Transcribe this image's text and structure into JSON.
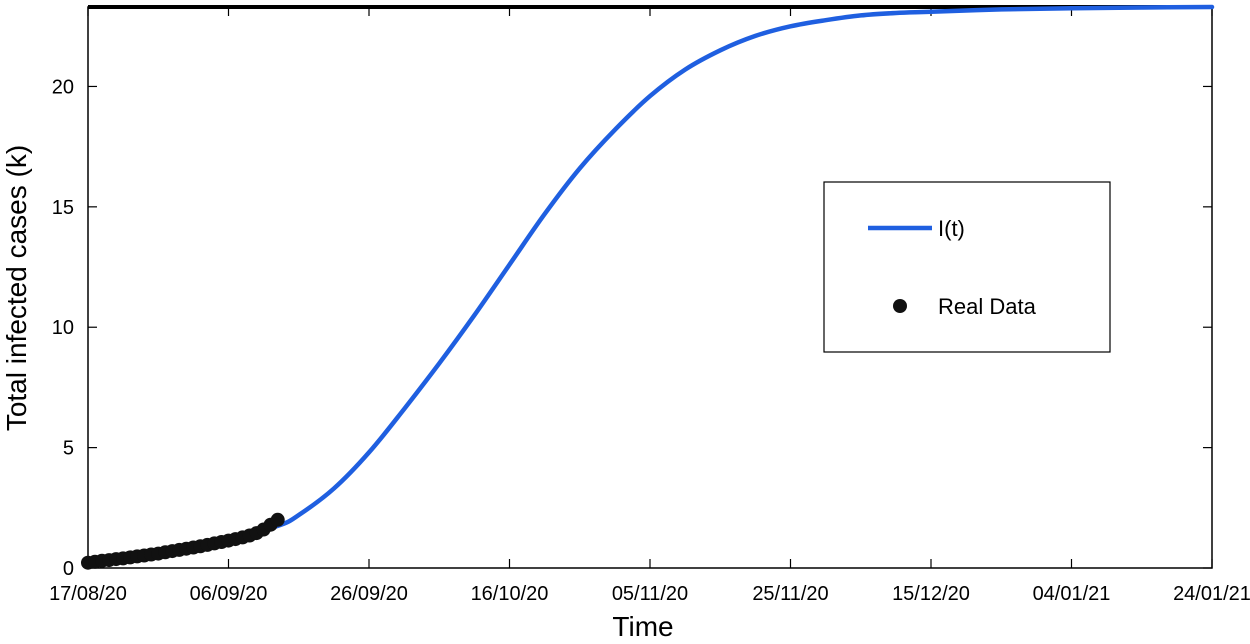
{
  "chart_data": {
    "type": "line",
    "title": "",
    "xlabel": "Time",
    "ylabel": "Total infected cases (k)",
    "x_tick_labels": [
      "17/08/20",
      "06/09/20",
      "26/09/20",
      "16/10/20",
      "05/11/20",
      "25/11/20",
      "15/12/20",
      "04/01/21",
      "24/01/21"
    ],
    "y_ticks": [
      0,
      5,
      10,
      15,
      20
    ],
    "xlim": [
      "2020-08-17",
      "2021-01-24"
    ],
    "ylim": [
      0,
      23.3
    ],
    "grid": false,
    "legend_position": "right",
    "series": [
      {
        "name": "I(t)",
        "kind": "line",
        "color": "#1f5fe0",
        "x": [
          "2020-08-17",
          "2020-08-27",
          "2020-09-06",
          "2020-09-13",
          "2020-09-16",
          "2020-09-21",
          "2020-09-26",
          "2020-10-01",
          "2020-10-06",
          "2020-10-11",
          "2020-10-16",
          "2020-10-21",
          "2020-10-26",
          "2020-10-31",
          "2020-11-05",
          "2020-11-10",
          "2020-11-15",
          "2020-11-20",
          "2020-11-25",
          "2020-11-30",
          "2020-12-05",
          "2020-12-10",
          "2020-12-15",
          "2020-12-25",
          "2021-01-04",
          "2021-01-14",
          "2021-01-24"
        ],
        "y": [
          0.25,
          0.6,
          1.2,
          1.75,
          2.2,
          3.3,
          4.8,
          6.6,
          8.5,
          10.5,
          12.6,
          14.7,
          16.6,
          18.2,
          19.6,
          20.7,
          21.5,
          22.1,
          22.5,
          22.75,
          22.95,
          23.05,
          23.1,
          23.2,
          23.25,
          23.28,
          23.3
        ]
      },
      {
        "name": "Real Data",
        "kind": "scatter",
        "color": "#111111",
        "x": [
          "2020-08-17",
          "2020-08-18",
          "2020-08-19",
          "2020-08-20",
          "2020-08-21",
          "2020-08-22",
          "2020-08-23",
          "2020-08-24",
          "2020-08-25",
          "2020-08-26",
          "2020-08-27",
          "2020-08-28",
          "2020-08-29",
          "2020-08-30",
          "2020-08-31",
          "2020-09-01",
          "2020-09-02",
          "2020-09-03",
          "2020-09-04",
          "2020-09-05",
          "2020-09-06",
          "2020-09-07",
          "2020-09-08",
          "2020-09-09",
          "2020-09-10",
          "2020-09-11",
          "2020-09-12",
          "2020-09-13"
        ],
        "y": [
          0.22,
          0.26,
          0.3,
          0.33,
          0.37,
          0.4,
          0.44,
          0.48,
          0.52,
          0.56,
          0.6,
          0.65,
          0.7,
          0.75,
          0.8,
          0.85,
          0.9,
          0.96,
          1.02,
          1.08,
          1.14,
          1.2,
          1.27,
          1.35,
          1.45,
          1.6,
          1.8,
          2.0
        ]
      }
    ]
  }
}
